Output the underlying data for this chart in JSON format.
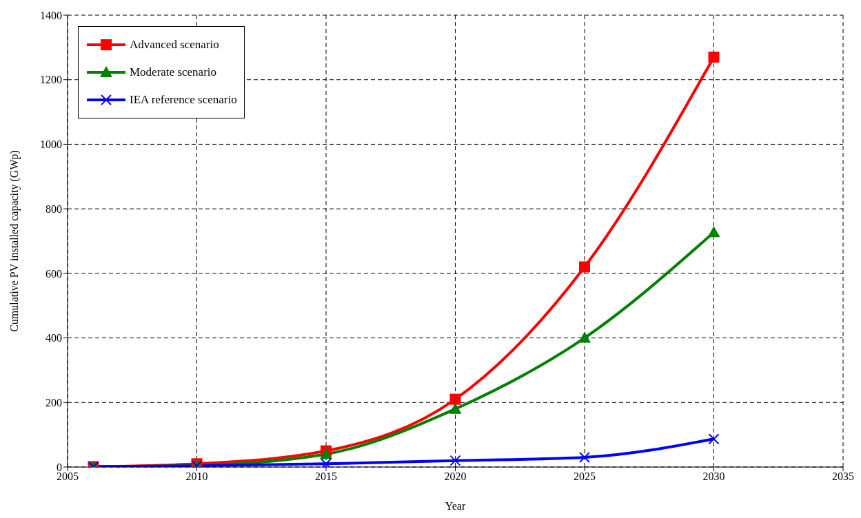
{
  "chart_data": {
    "type": "line",
    "xlabel": "Year",
    "ylabel": "Cumulative PV installed capacity (GWp)",
    "x": [
      2006,
      2010,
      2015,
      2020,
      2025,
      2030
    ],
    "series": [
      {
        "name": "Advanced scenario",
        "color": "#ff0000",
        "marker": "square",
        "values": [
          1,
          10,
          50,
          210,
          620,
          1270
        ]
      },
      {
        "name": "Moderate scenario",
        "color": "#008000",
        "marker": "triangle",
        "values": [
          1,
          5,
          40,
          180,
          400,
          727
        ]
      },
      {
        "name": "IEA reference scenario",
        "color": "#0000ff",
        "marker": "cross",
        "values": [
          1,
          4,
          10,
          20,
          30,
          87
        ]
      }
    ],
    "xlim": [
      2005,
      2035
    ],
    "xticks": [
      2005,
      2010,
      2015,
      2020,
      2025,
      2030,
      2035
    ],
    "ylim": [
      0,
      1400
    ],
    "yticks": [
      0,
      200,
      400,
      600,
      800,
      1000,
      1200,
      1400
    ],
    "grid": true,
    "legend": "top left",
    "line_style": "solid"
  }
}
